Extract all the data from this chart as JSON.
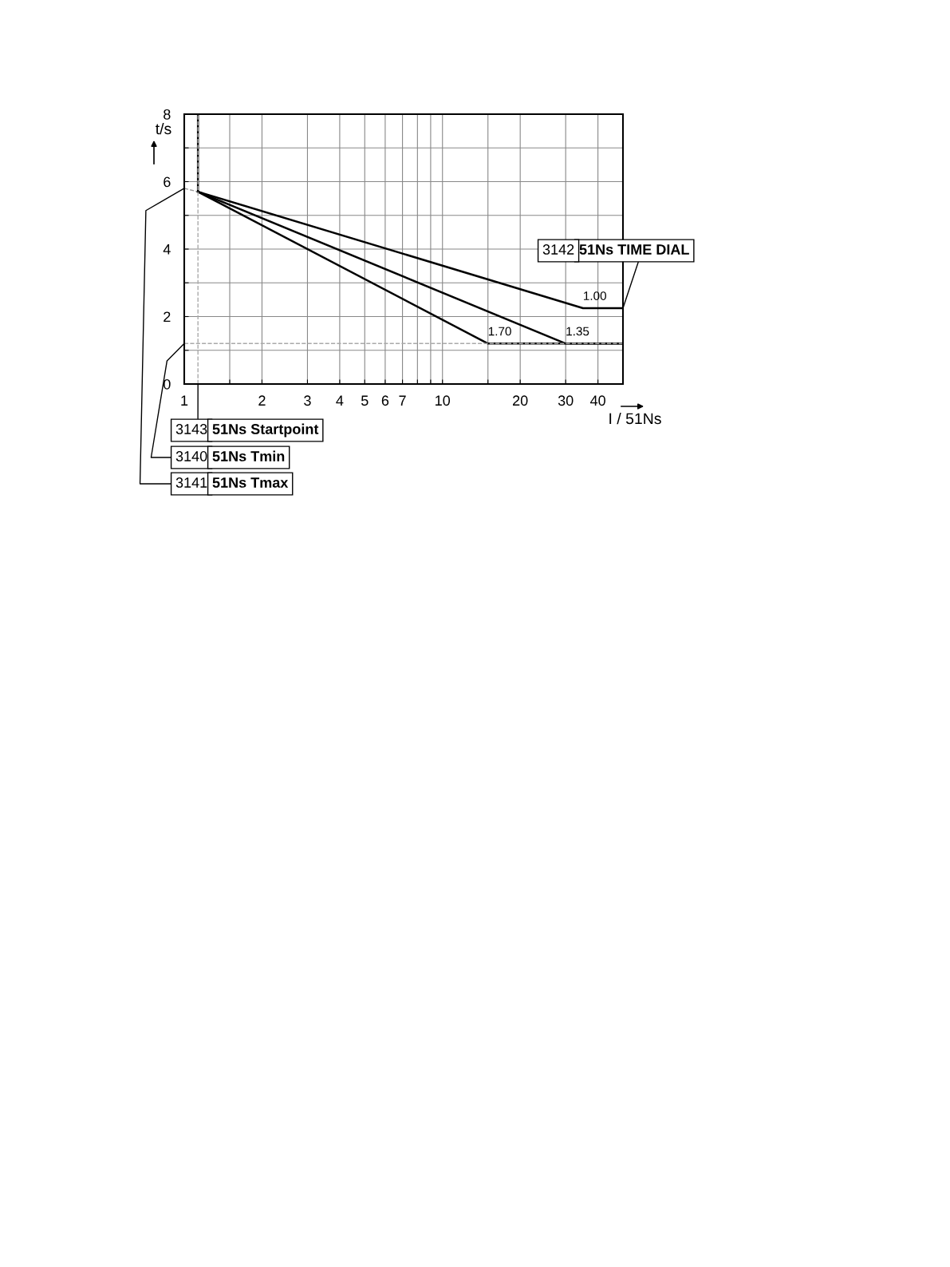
{
  "chart_data": {
    "type": "line",
    "xlabel": "I / 51Ns",
    "ylabel": "t/s",
    "log": "x",
    "xlim": [
      1,
      50
    ],
    "ylim": [
      0,
      8
    ],
    "xticks": [
      1,
      {
        "value": 1.5,
        "label": null
      },
      2,
      3,
      4,
      5,
      6,
      7,
      {
        "value": 8,
        "label": null
      },
      {
        "value": 9,
        "label": null
      },
      10,
      {
        "value": 15,
        "label": null
      },
      20,
      30,
      40
    ],
    "yticks": [
      0,
      {
        "value": 1,
        "label": null
      },
      2,
      {
        "value": 3,
        "label": null
      },
      4,
      {
        "value": 5,
        "label": null
      },
      6,
      {
        "value": 7,
        "label": null
      },
      8
    ],
    "grid": true,
    "legend": false,
    "marker": "none",
    "line_style": "solid",
    "series": [
      {
        "color": "#000000",
        "x": [
          1.13,
          1.13
        ],
        "values": [
          5.7,
          8
        ]
      },
      {
        "color": "#999999",
        "line_style": "dashed",
        "x": [
          1,
          1.13
        ],
        "values": [
          5.8,
          5.7
        ]
      },
      {
        "name": "1.70",
        "color": "#000000",
        "x": [
          1.13,
          15,
          50
        ],
        "values": [
          5.7,
          1.2,
          1.2
        ]
      },
      {
        "name": "1.35",
        "color": "#000000",
        "x": [
          1.13,
          30,
          50
        ],
        "values": [
          5.7,
          1.2,
          1.2
        ]
      },
      {
        "name": "1.00",
        "color": "#000000",
        "x": [
          1.13,
          35,
          50
        ],
        "values": [
          5.7,
          2.25,
          2.25
        ]
      }
    ],
    "ref_lines": [
      {
        "axis": "y",
        "value": 1.2,
        "label": null,
        "color": "#aaaaaa",
        "line_style": "dashed"
      },
      {
        "axis": "x",
        "value": 1.13,
        "label": null,
        "color": "#aaaaaa",
        "line_style": "dashed"
      }
    ],
    "annotations": [
      {
        "text": "3143",
        "x": 1.13,
        "y": 0
      },
      "51Ns Startpoint",
      {
        "text": "3140",
        "x": 1,
        "y": 1.2
      },
      "51Ns Tmin",
      {
        "text": "3141",
        "x": 1,
        "y": 5.8
      },
      "51Ns Tmax",
      "3142",
      {
        "text": "51Ns TIME DIAL",
        "x": 50,
        "y": 2.25
      }
    ]
  }
}
